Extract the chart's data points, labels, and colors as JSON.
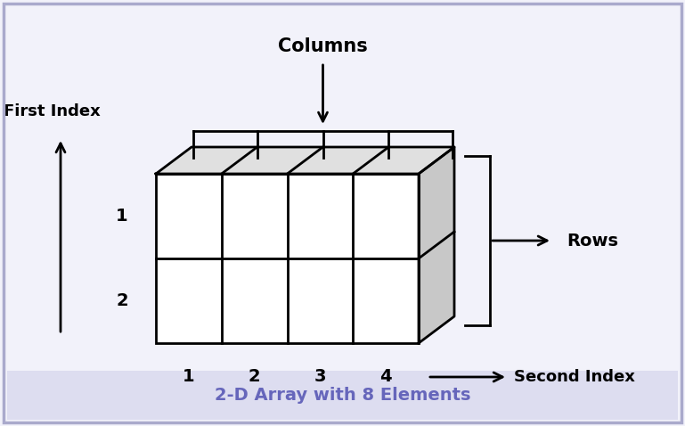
{
  "title": "2-D Array with 8 Elements",
  "title_color": "#6666bb",
  "bg_color": "#f2f2fa",
  "border_color": "#aaaacc",
  "box_bg": "#ffffff",
  "side_color": "#c8c8c8",
  "top_color": "#e0e0e0",
  "grid_color": "#000000",
  "text_color": "#000000",
  "label_columns": "Columns",
  "label_rows": "Rows",
  "label_first_index": "First Index",
  "label_second_index": "Second Index",
  "row_labels": [
    "1",
    "2"
  ],
  "col_labels": [
    "1",
    "2",
    "3",
    "4"
  ],
  "n_rows": 2,
  "n_cols": 4,
  "figsize": [
    7.69,
    4.78
  ],
  "dpi": 100
}
